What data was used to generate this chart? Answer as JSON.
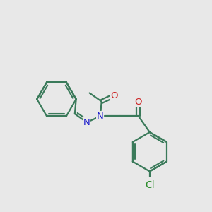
{
  "background_color": "#e8e8e8",
  "bond_color": "#3a7a5a",
  "n_color": "#1a1acc",
  "o_color": "#cc2020",
  "cl_color": "#2a8c2a",
  "line_width": 1.6,
  "font_size_atom": 9.5,
  "figsize": [
    3.0,
    3.0
  ],
  "dpi": 100,
  "xlim": [
    -2.4,
    2.8
  ],
  "ylim": [
    -2.2,
    2.2
  ]
}
